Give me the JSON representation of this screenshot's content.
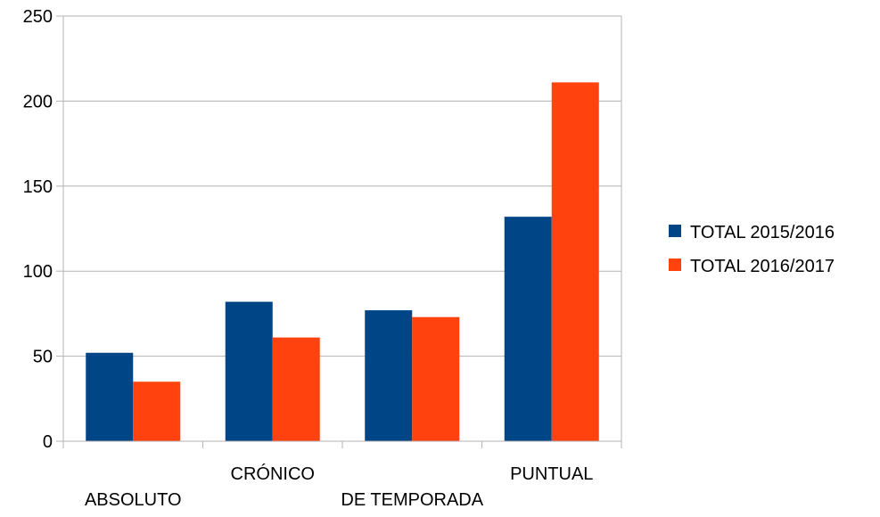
{
  "chart_data": {
    "type": "bar",
    "title": "",
    "xlabel": "",
    "ylabel": "",
    "categories": [
      "ABSOLUTO",
      "CRÓNICO",
      "DE TEMPORADA",
      "PUNTUAL"
    ],
    "series": [
      {
        "name": "TOTAL 2015/2016",
        "values": [
          52,
          82,
          77,
          132
        ],
        "color": "#004586"
      },
      {
        "name": "TOTAL 2016/2017",
        "values": [
          35,
          61,
          73,
          211
        ],
        "color": "#FF420E"
      }
    ],
    "ylim": [
      0,
      250
    ],
    "yticks": [
      "0",
      "50",
      "100",
      "150",
      "200",
      "250"
    ],
    "grid": true,
    "legend": "right"
  }
}
